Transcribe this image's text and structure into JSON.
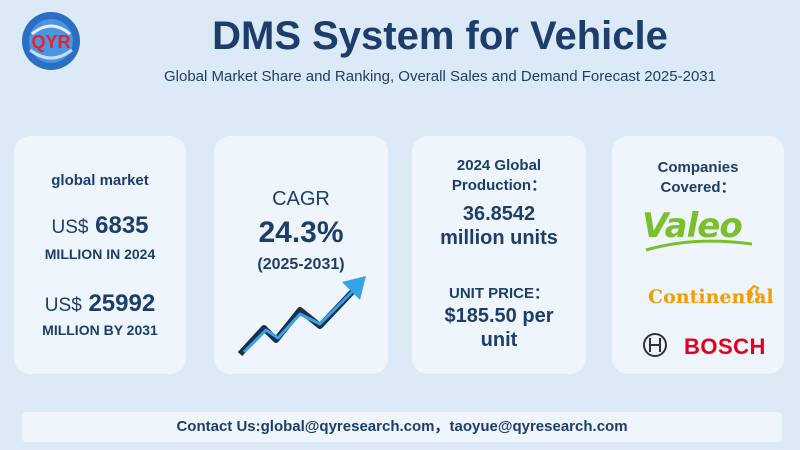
{
  "brand": {
    "logo_text": "QYR"
  },
  "header": {
    "title": "DMS System for Vehicle",
    "subtitle": "Global Market Share and Ranking, Overall Sales and Demand Forecast 2025-2031"
  },
  "market": {
    "label": "global market",
    "currency": "US$",
    "value_2024": "6835",
    "unit_2024": "MILLION IN 2024",
    "value_2031": "25992",
    "unit_2031": "MILLION BY 2031"
  },
  "cagr": {
    "label": "CAGR",
    "value": "24.3%",
    "range": "(2025-2031)",
    "trend_icon": "rising-trend-arrow-icon"
  },
  "production": {
    "label_line1": "2024 Global",
    "label_line2": "Production：",
    "value_line1": "36.8542",
    "value_line2": "million units",
    "price_label": "UNIT PRICE：",
    "price_line1": "$185.50 per",
    "price_line2": "unit"
  },
  "companies": {
    "label_line1": "Companies",
    "label_line2": "Covered：",
    "logos": [
      "Valeo",
      "Continental",
      "BOSCH"
    ]
  },
  "footer": {
    "contact": "Contact Us:global@qyresearch.com，taoyue@qyresearch.com"
  },
  "colors": {
    "background": "#dce9f7",
    "card": "#eef5fd",
    "text": "#1d3e6b",
    "valeo": "#7bbf2a",
    "continental": "#f59c00",
    "bosch": "#e2001a"
  }
}
